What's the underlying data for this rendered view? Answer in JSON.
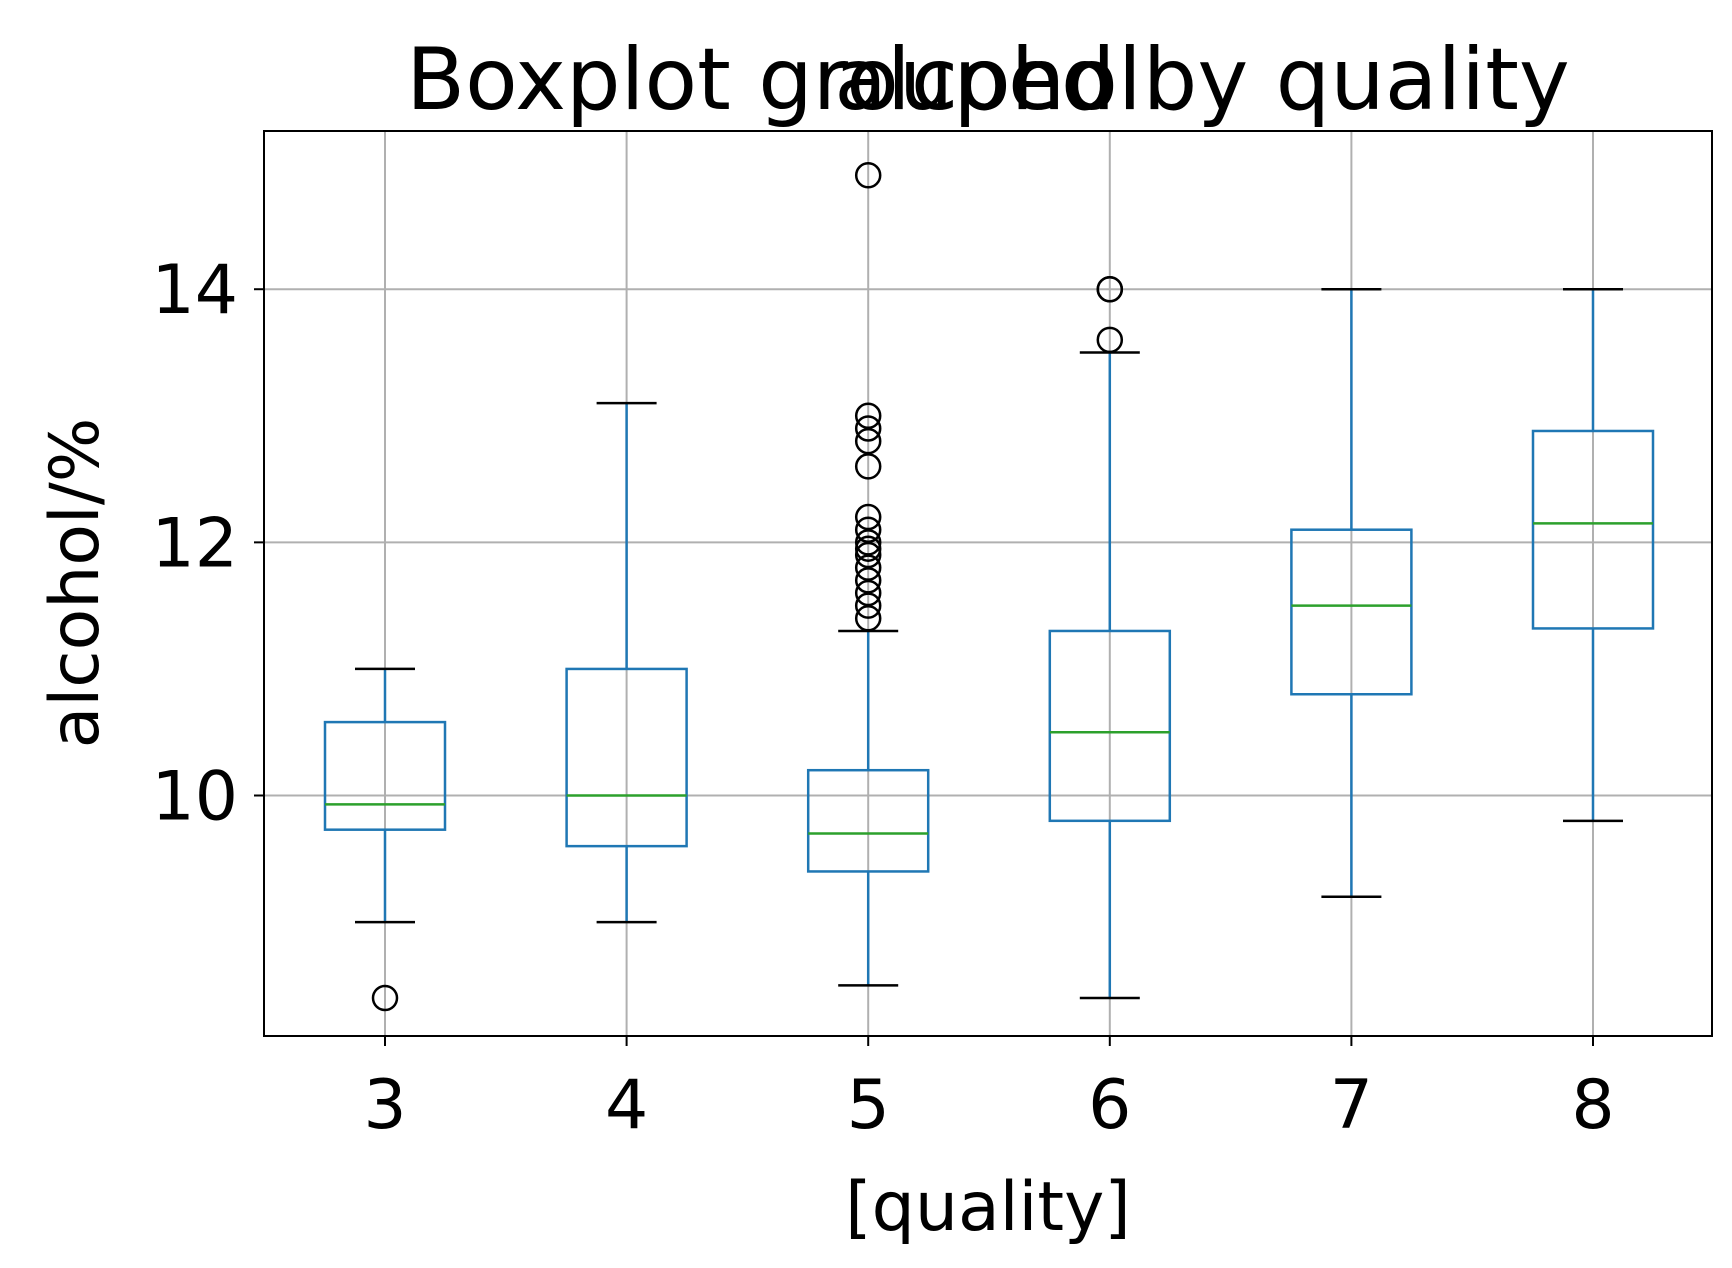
{
  "chart_data": {
    "type": "boxplot",
    "suptitle": "Boxplot grouped by quality",
    "title": "alcohol",
    "xlabel": "[quality]",
    "ylabel": "alcohol/%",
    "categories": [
      "3",
      "4",
      "5",
      "6",
      "7",
      "8"
    ],
    "ylim": [
      8.1,
      15.25
    ],
    "yticks": [
      10,
      12,
      14
    ],
    "grid": true,
    "colors": {
      "box": "#1f77b4",
      "median": "#2ca02c",
      "whisker": "#1f77b4",
      "cap": "#000000",
      "flier": "#000000",
      "grid": "#b0b0b0"
    },
    "boxes": [
      {
        "category": "3",
        "whislo": 9.0,
        "q1": 9.73,
        "med": 9.93,
        "q3": 10.58,
        "whishi": 11.0,
        "fliers": [
          8.4
        ]
      },
      {
        "category": "4",
        "whislo": 9.0,
        "q1": 9.6,
        "med": 10.0,
        "q3": 11.0,
        "whishi": 13.1,
        "fliers": []
      },
      {
        "category": "5",
        "whislo": 8.5,
        "q1": 9.4,
        "med": 9.7,
        "q3": 10.2,
        "whishi": 11.3,
        "fliers": [
          11.4,
          11.5,
          11.6,
          11.7,
          11.8,
          11.9,
          11.95,
          12.0,
          12.1,
          12.2,
          12.6,
          12.8,
          12.9,
          13.0,
          14.9
        ]
      },
      {
        "category": "6",
        "whislo": 8.4,
        "q1": 9.8,
        "med": 10.5,
        "q3": 11.3,
        "whishi": 13.5,
        "fliers": [
          13.6,
          14.0,
          14.0
        ]
      },
      {
        "category": "7",
        "whislo": 9.2,
        "q1": 10.8,
        "med": 11.5,
        "q3": 12.1,
        "whishi": 14.0,
        "fliers": []
      },
      {
        "category": "8",
        "whislo": 9.8,
        "q1": 11.32,
        "med": 12.15,
        "q3": 12.88,
        "whishi": 14.0,
        "fliers": []
      }
    ]
  }
}
